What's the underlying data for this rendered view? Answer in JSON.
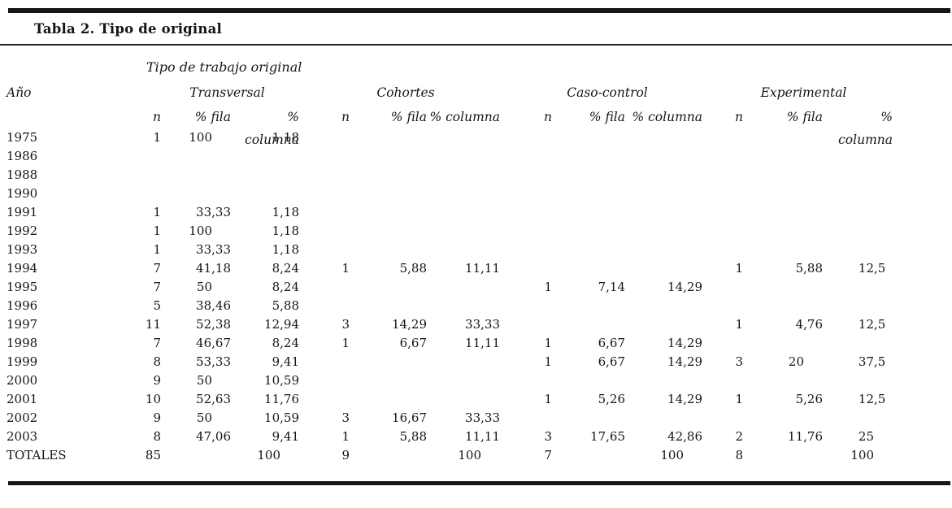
{
  "page": {
    "background": "#ffffff",
    "text_color": "#151515"
  },
  "title": "Tabla 2. Tipo de original",
  "table": {
    "spanner": "Tipo de trabajo original",
    "row_header": "Año",
    "groups": [
      {
        "label": "Transversal",
        "subcols": [
          "n",
          "% fila",
          "% columna"
        ]
      },
      {
        "label": "Cohortes",
        "subcols": [
          "n",
          "% fila",
          "% columna"
        ]
      },
      {
        "label": "Caso-control",
        "subcols": [
          "n",
          "% fila",
          "% columna"
        ]
      },
      {
        "label": "Experimental",
        "subcols": [
          "n",
          "% fila",
          "% columna"
        ]
      }
    ],
    "rows": [
      {
        "label": "1975",
        "values": [
          "1",
          "100",
          "1,18",
          "",
          "",
          "",
          "",
          "",
          "",
          "",
          "",
          ""
        ]
      },
      {
        "label": "1986",
        "values": [
          "",
          "",
          "",
          "",
          "",
          "",
          "",
          "",
          "",
          "",
          "",
          ""
        ]
      },
      {
        "label": "1988",
        "values": [
          "",
          "",
          "",
          "",
          "",
          "",
          "",
          "",
          "",
          "",
          "",
          ""
        ]
      },
      {
        "label": "1990",
        "values": [
          "",
          "",
          "",
          "",
          "",
          "",
          "",
          "",
          "",
          "",
          "",
          ""
        ]
      },
      {
        "label": "1991",
        "values": [
          "1",
          "33,33",
          "1,18",
          "",
          "",
          "",
          "",
          "",
          "",
          "",
          "",
          ""
        ]
      },
      {
        "label": "1992",
        "values": [
          "1",
          "100",
          "1,18",
          "",
          "",
          "",
          "",
          "",
          "",
          "",
          "",
          ""
        ]
      },
      {
        "label": "1993",
        "values": [
          "1",
          "33,33",
          "1,18",
          "",
          "",
          "",
          "",
          "",
          "",
          "",
          "",
          ""
        ]
      },
      {
        "label": "1994",
        "values": [
          "7",
          "41,18",
          "8,24",
          "1",
          "5,88",
          "11,11",
          "",
          "",
          "",
          "1",
          "5,88",
          "12,5"
        ]
      },
      {
        "label": "1995",
        "values": [
          "7",
          "50",
          "8,24",
          "",
          "",
          "",
          "1",
          "7,14",
          "14,29",
          "",
          "",
          ""
        ]
      },
      {
        "label": "1996",
        "values": [
          "5",
          "38,46",
          "5,88",
          "",
          "",
          "",
          "",
          "",
          "",
          "",
          "",
          ""
        ]
      },
      {
        "label": "1997",
        "values": [
          "11",
          "52,38",
          "12,94",
          "3",
          "14,29",
          "33,33",
          "",
          "",
          "",
          "1",
          "4,76",
          "12,5"
        ]
      },
      {
        "label": "1998",
        "values": [
          "7",
          "46,67",
          "8,24",
          "1",
          "6,67",
          "11,11",
          "1",
          "6,67",
          "14,29",
          "",
          "",
          ""
        ]
      },
      {
        "label": "1999",
        "values": [
          "8",
          "53,33",
          "9,41",
          "",
          "",
          "",
          "1",
          "6,67",
          "14,29",
          "3",
          "20",
          "37,5"
        ]
      },
      {
        "label": "2000",
        "values": [
          "9",
          "50",
          "10,59",
          "",
          "",
          "",
          "",
          "",
          "",
          "",
          "",
          ""
        ]
      },
      {
        "label": "2001",
        "values": [
          "10",
          "52,63",
          "11,76",
          "",
          "",
          "",
          "1",
          "5,26",
          "14,29",
          "1",
          "5,26",
          "12,5"
        ]
      },
      {
        "label": "2002",
        "values": [
          "9",
          "50",
          "10,59",
          "3",
          "16,67",
          "33,33",
          "",
          "",
          "",
          "",
          "",
          ""
        ]
      },
      {
        "label": "2003",
        "values": [
          "8",
          "47,06",
          "9,41",
          "1",
          "5,88",
          "11,11",
          "3",
          "17,65",
          "42,86",
          "2",
          "11,76",
          "25"
        ]
      },
      {
        "label": "TOTALES",
        "values": [
          "85",
          "",
          "100",
          "9",
          "",
          "100",
          "7",
          "",
          "100",
          "8",
          "",
          "100"
        ]
      }
    ]
  }
}
